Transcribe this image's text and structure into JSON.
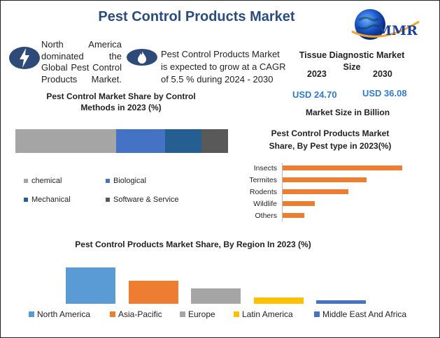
{
  "header": {
    "title": "Pest Control Products Market",
    "logo_text": "MMR"
  },
  "intro": {
    "left_text": "North America dominated the Global Pest Control Products Market.",
    "right_text": "Pest Control Products Market is expected to grow at a CAGR of 5.5 % during 2024 - 2030",
    "left_icon": "lightning-icon",
    "right_icon": "flame-icon",
    "icon_color": "#2d4a78"
  },
  "market_size": {
    "title": "Tissue Diagnostic Market Size",
    "year_start": "2023",
    "year_end": "2030",
    "value_start": "USD 24.70",
    "value_end": "USD 36.08",
    "caption": "Market Size in Billion",
    "value_color": "#2f7bd0"
  },
  "chart_data": [
    {
      "type": "bar",
      "stacked": true,
      "orientation": "horizontal",
      "title": "Pest Control Market Share by Control Methods in 2023 (%)",
      "categories": [
        "chemical",
        "Biological",
        "Mechanical",
        "Software & Service"
      ],
      "values": [
        47.5,
        23,
        17,
        12.5
      ],
      "colors": [
        "#a5a5a5",
        "#4472c4",
        "#255e91",
        "#595959"
      ]
    },
    {
      "type": "bar",
      "orientation": "horizontal",
      "title": "Pest Control Products Market Share, By Pest type in 2023(%)",
      "categories": [
        "Insects",
        "Termites",
        "Rodents",
        "Wildlife",
        "Others"
      ],
      "values": [
        100,
        70,
        55,
        27,
        18
      ],
      "xlim": [
        0,
        100
      ],
      "color": "#ed7d31"
    },
    {
      "type": "bar",
      "title": "Pest Control Products Market Share, By Region In 2023 (%)",
      "categories": [
        "North America",
        "Asia-Pacific",
        "Europe",
        "Latin America",
        "Middle East And Africa"
      ],
      "values": [
        100,
        63,
        43,
        17,
        10
      ],
      "ylim": [
        0,
        100
      ],
      "colors": [
        "#5b9bd5",
        "#ed7d31",
        "#a5a5a5",
        "#ffc000",
        "#4472c4"
      ],
      "legend": "bottom"
    }
  ]
}
